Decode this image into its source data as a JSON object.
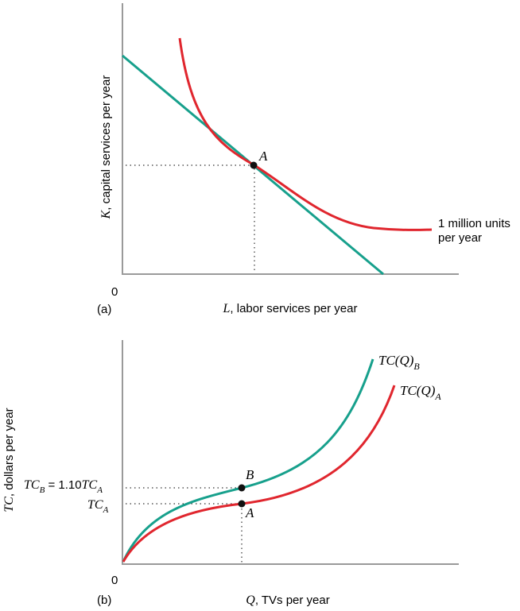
{
  "chart_data": [
    {
      "type": "line",
      "panel_label": "(a)",
      "origin_label": "0",
      "xlabel": {
        "var": "L",
        "text": ", labor services per year"
      },
      "ylabel": {
        "var": "K",
        "text": ", capital services per year"
      },
      "series": [
        {
          "name": "isoquant",
          "color": "#e0262e",
          "label_lines": [
            "1 million units",
            "per year"
          ]
        },
        {
          "name": "isocost",
          "color": "#17a08c"
        }
      ],
      "point": {
        "label": "A"
      }
    },
    {
      "type": "line",
      "panel_label": "(b)",
      "origin_label": "0",
      "xlabel": {
        "var": "Q",
        "text": ", TVs per year"
      },
      "ylabel": {
        "var": "TC",
        "text": ", dollars per year"
      },
      "series": [
        {
          "name": "TC(Q)_B",
          "color": "#17a08c",
          "label": {
            "main": "TC(Q)",
            "sub": "B"
          }
        },
        {
          "name": "TC(Q)_A",
          "color": "#e0262e",
          "label": {
            "main": "TC(Q)",
            "sub": "A"
          }
        }
      ],
      "points": [
        {
          "label": "B",
          "tick_label": {
            "main": "TC",
            "sub": "B",
            "rest": " = 1.10",
            "main2": "TC",
            "sub2": "A"
          }
        },
        {
          "label": "A",
          "tick_label": {
            "main": "TC",
            "sub": "A"
          }
        }
      ],
      "ratio_note": "1.10"
    }
  ]
}
